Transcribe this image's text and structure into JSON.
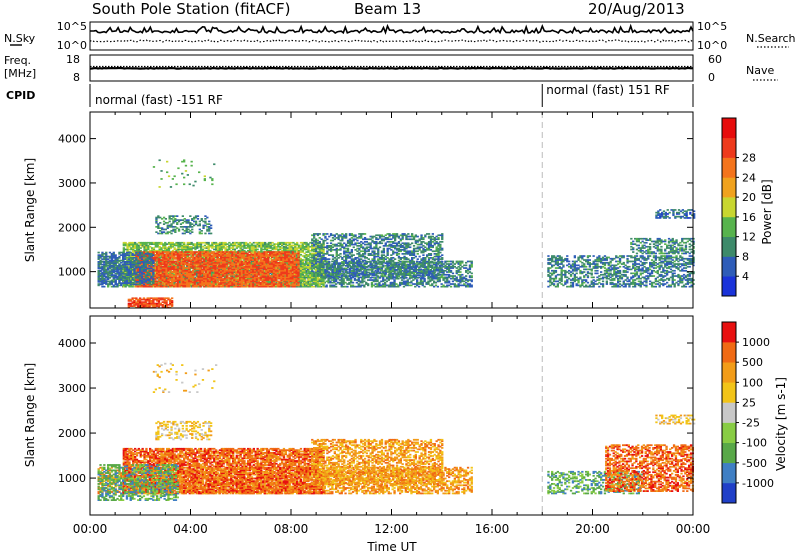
{
  "header": {
    "station": "South Pole Station (fitACF)",
    "beam": "Beam 13",
    "date": "20/Aug/2013"
  },
  "noise_panel": {
    "left_label": "N.Sky",
    "right_label": "N.Search",
    "left_ticks": [
      "10^5",
      "10^0"
    ],
    "right_ticks": [
      "10^5",
      "10^0"
    ]
  },
  "freq_panel": {
    "left_label_1": "Freq.",
    "left_label_2": "[MHz]",
    "right_label": "Nave",
    "left_ticks": [
      "18",
      "8"
    ],
    "right_ticks": [
      "60",
      "0"
    ]
  },
  "cpid_panel": {
    "label": "CPID",
    "segments": [
      "normal (fast) -151 RF",
      "normal (fast) 151 RF"
    ],
    "change_time_hours": 18.0
  },
  "colors": {
    "power_scale": [
      "#1a33d9",
      "#2e5cb8",
      "#3d8a6a",
      "#57b34d",
      "#c8d630",
      "#f0a21e",
      "#f4741c",
      "#ee3a1c",
      "#e60c0c"
    ],
    "velocity_scale": [
      "#2040c8",
      "#3f7fc4",
      "#58a848",
      "#88cc44",
      "#c8c8c8",
      "#f2c418",
      "#f29c18",
      "#f06a14",
      "#e81010"
    ]
  },
  "chart_data": [
    {
      "type": "heatmap",
      "name": "power",
      "ylabel": "Slant Range [km]",
      "y_ticks": [
        "1000",
        "2000",
        "3000",
        "4000"
      ],
      "y_ticks_values": [
        1000,
        2000,
        3000,
        4000
      ],
      "ylim": [
        180,
        4600
      ],
      "xlim_hours": [
        0,
        24
      ],
      "colorbar_label": "Power [dB]",
      "colorbar_ticks": [
        "4",
        "8",
        "12",
        "16",
        "20",
        "24",
        "28"
      ],
      "colorbar_range": [
        0,
        32
      ],
      "regions": [
        {
          "t0": 0.3,
          "t1": 15.2,
          "r0": 650,
          "r1": 1250,
          "level": 7,
          "density": 0.55
        },
        {
          "t0": 1.3,
          "t1": 9.3,
          "r0": 650,
          "r1": 1650,
          "level": 13,
          "density": 0.75
        },
        {
          "t0": 1.8,
          "t1": 8.3,
          "r0": 650,
          "r1": 1450,
          "level": 26,
          "density": 0.8
        },
        {
          "t0": 0.3,
          "t1": 2.5,
          "r0": 700,
          "r1": 1450,
          "level": 6,
          "density": 0.6
        },
        {
          "t0": 8.8,
          "t1": 14.0,
          "r0": 850,
          "r1": 1850,
          "level": 7,
          "density": 0.5
        },
        {
          "t0": 1.5,
          "t1": 3.3,
          "r0": 180,
          "r1": 420,
          "level": 27,
          "density": 0.8
        },
        {
          "t0": 2.6,
          "t1": 4.8,
          "r0": 1850,
          "r1": 2250,
          "level": 8,
          "density": 0.4
        },
        {
          "t0": 18.2,
          "t1": 24.0,
          "r0": 650,
          "r1": 1350,
          "level": 7,
          "density": 0.5
        },
        {
          "t0": 21.5,
          "t1": 24.0,
          "r0": 1400,
          "r1": 1750,
          "level": 8,
          "density": 0.5
        },
        {
          "t0": 22.5,
          "t1": 24.0,
          "r0": 2200,
          "r1": 2400,
          "level": 5,
          "density": 0.5
        },
        {
          "t0": 2.5,
          "t1": 5.0,
          "r0": 2900,
          "r1": 3550,
          "level": 12,
          "density": 0.05
        }
      ]
    },
    {
      "type": "heatmap",
      "name": "velocity",
      "ylabel": "Slant Range [km]",
      "y_ticks": [
        "1000",
        "2000",
        "3000",
        "4000"
      ],
      "y_ticks_values": [
        1000,
        2000,
        3000,
        4000
      ],
      "ylim": [
        180,
        4600
      ],
      "xlim_hours": [
        0,
        24
      ],
      "xlabel": "Time UT",
      "x_ticks": [
        "00:00",
        "04:00",
        "08:00",
        "12:00",
        "16:00",
        "20:00",
        "00:00"
      ],
      "x_ticks_values": [
        0,
        4,
        8,
        12,
        16,
        20,
        24
      ],
      "colorbar_label": "Velocity [m s-1]",
      "colorbar_ticks": [
        "-1000",
        "-500",
        "-100",
        "-25",
        "25",
        "100",
        "500",
        "1000"
      ],
      "regions": [
        {
          "t0": 0.3,
          "t1": 15.2,
          "r0": 650,
          "r1": 1250,
          "level": 6,
          "density": 0.55
        },
        {
          "t0": 1.3,
          "t1": 9.3,
          "r0": 650,
          "r1": 1650,
          "level": 7,
          "density": 0.75
        },
        {
          "t0": 0.3,
          "t1": 3.5,
          "r0": 500,
          "r1": 1300,
          "level": 2,
          "density": 0.5
        },
        {
          "t0": 8.8,
          "t1": 14.0,
          "r0": 850,
          "r1": 1850,
          "level": 6,
          "density": 0.5
        },
        {
          "t0": 2.6,
          "t1": 4.8,
          "r0": 1850,
          "r1": 2250,
          "level": 5,
          "density": 0.35
        },
        {
          "t0": 18.2,
          "t1": 22.0,
          "r0": 650,
          "r1": 1150,
          "level": 2,
          "density": 0.45
        },
        {
          "t0": 20.5,
          "t1": 24.0,
          "r0": 700,
          "r1": 1750,
          "level": 7,
          "density": 0.55
        },
        {
          "t0": 22.5,
          "t1": 24.0,
          "r0": 2200,
          "r1": 2400,
          "level": 5,
          "density": 0.4
        },
        {
          "t0": 2.5,
          "t1": 5.0,
          "r0": 2900,
          "r1": 3550,
          "level": 5,
          "density": 0.05
        }
      ]
    }
  ]
}
